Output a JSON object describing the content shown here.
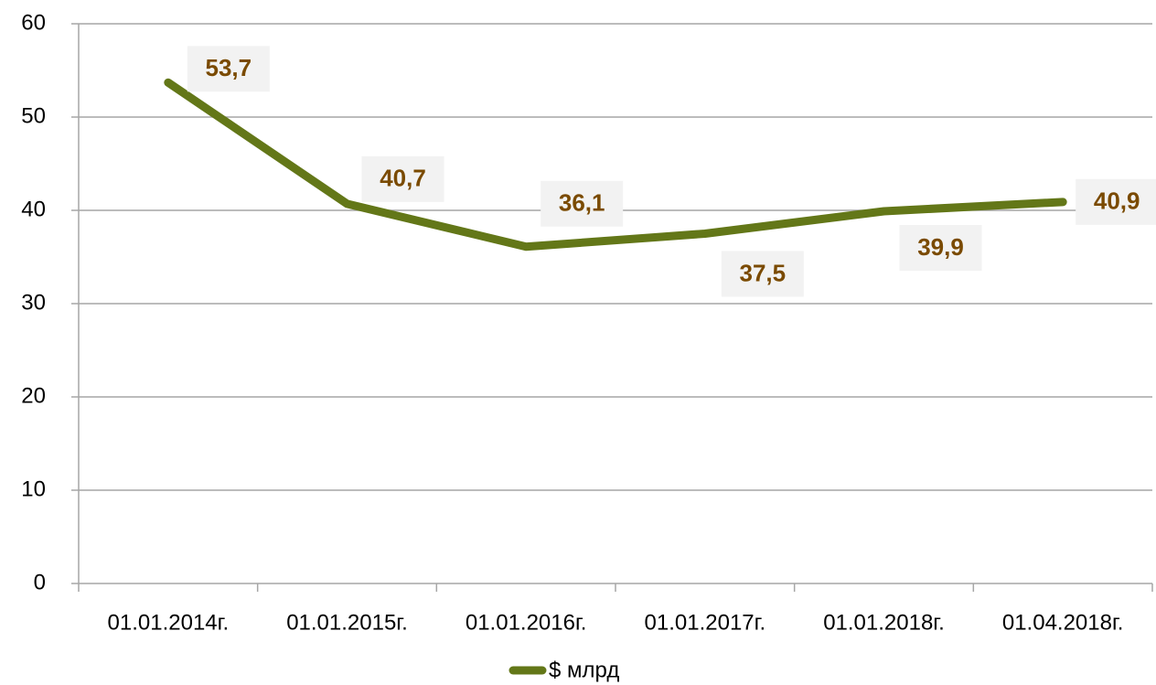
{
  "chart_data": {
    "type": "line",
    "categories": [
      "01.01.2014г.",
      "01.01.2015г.",
      "01.01.2016г.",
      "01.01.2017г.",
      "01.01.2018г.",
      "01.04.2018г."
    ],
    "series": [
      {
        "name": "$ млрд",
        "color": "#637718",
        "values": [
          53.7,
          40.7,
          36.1,
          37.5,
          39.9,
          40.9
        ],
        "value_labels": [
          "53,7",
          "40,7",
          "36,1",
          "37,5",
          "39,9",
          "40,9"
        ]
      }
    ],
    "ylim": [
      0,
      60
    ],
    "yticks": [
      0,
      10,
      20,
      30,
      40,
      50,
      60
    ],
    "grid": true,
    "legend": "bottom"
  }
}
